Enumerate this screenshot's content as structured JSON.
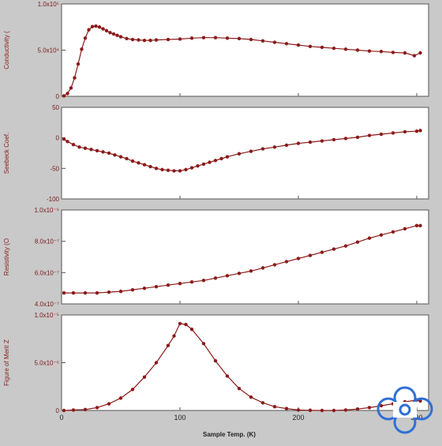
{
  "chart_data": [
    {
      "type": "line",
      "ylabel": "Conductivity (",
      "ylim": [
        0,
        100000
      ],
      "xlim": [
        0,
        310
      ],
      "yticks": [
        {
          "v": 0,
          "label": "0"
        },
        {
          "v": 50000,
          "label": "5.0x10⁴"
        },
        {
          "v": 100000,
          "label": "1.0x10⁵"
        }
      ],
      "grid": false,
      "series": [
        {
          "color": "#8b1a1a",
          "x": [
            2,
            5,
            8,
            11,
            14,
            17,
            20,
            23,
            26,
            29,
            32,
            35,
            38,
            41,
            44,
            47,
            50,
            55,
            60,
            65,
            70,
            75,
            80,
            90,
            100,
            110,
            120,
            130,
            140,
            150,
            160,
            170,
            180,
            190,
            200,
            210,
            220,
            230,
            240,
            250,
            260,
            270,
            280,
            290,
            298,
            303
          ],
          "y": [
            500,
            3000,
            9000,
            20000,
            35000,
            51000,
            63000,
            72000,
            75500,
            76000,
            75000,
            73000,
            71000,
            69000,
            67500,
            66000,
            64500,
            62500,
            61500,
            61000,
            60500,
            60500,
            61000,
            61500,
            62000,
            63000,
            63500,
            63500,
            63000,
            62500,
            61500,
            60000,
            58500,
            57000,
            55500,
            54000,
            53000,
            52000,
            51000,
            50000,
            49000,
            48500,
            47500,
            47000,
            44000,
            47000
          ]
        }
      ]
    },
    {
      "type": "line",
      "ylabel": "Seebeck Coef.",
      "ylim": [
        -100,
        50
      ],
      "xlim": [
        0,
        310
      ],
      "yticks": [
        {
          "v": -100,
          "label": "-100"
        },
        {
          "v": -50,
          "label": "-50"
        },
        {
          "v": 0,
          "label": "0"
        },
        {
          "v": 50,
          "label": "50"
        }
      ],
      "grid": false,
      "series": [
        {
          "color": "#8b1a1a",
          "x": [
            2,
            5,
            10,
            15,
            20,
            25,
            30,
            35,
            40,
            45,
            50,
            55,
            60,
            65,
            70,
            75,
            80,
            85,
            90,
            95,
            100,
            105,
            110,
            115,
            120,
            125,
            130,
            135,
            140,
            150,
            160,
            170,
            180,
            190,
            200,
            210,
            220,
            230,
            240,
            250,
            260,
            270,
            280,
            290,
            300,
            303
          ],
          "y": [
            -2,
            -6,
            -11,
            -15,
            -17,
            -19,
            -21,
            -23,
            -25,
            -28,
            -31,
            -34,
            -38,
            -41,
            -44,
            -47,
            -50,
            -52,
            -53,
            -54,
            -54,
            -52,
            -49,
            -46,
            -43,
            -40,
            -37,
            -34,
            -31,
            -26,
            -22,
            -18,
            -15,
            -12,
            -9,
            -7,
            -5,
            -3,
            -1,
            1,
            4,
            6,
            8,
            10,
            11,
            12
          ]
        }
      ]
    },
    {
      "type": "line",
      "ylabel": "Resistivity (O",
      "ylim": [
        4e-07,
        1e-06
      ],
      "xlim": [
        0,
        310
      ],
      "yticks": [
        {
          "v": 4e-07,
          "label": "4.0x10⁻⁷"
        },
        {
          "v": 6e-07,
          "label": "6.0x10⁻⁷"
        },
        {
          "v": 8e-07,
          "label": "8.0x10⁻⁷"
        },
        {
          "v": 1e-06,
          "label": "1.0x10⁻⁶"
        }
      ],
      "grid": false,
      "series": [
        {
          "color": "#8b1a1a",
          "x": [
            2,
            10,
            20,
            30,
            40,
            50,
            60,
            70,
            80,
            90,
            100,
            110,
            120,
            130,
            140,
            150,
            160,
            170,
            180,
            190,
            200,
            210,
            220,
            230,
            240,
            250,
            260,
            270,
            280,
            290,
            300,
            303
          ],
          "y": [
            4.7e-07,
            4.7e-07,
            4.7e-07,
            4.7e-07,
            4.75e-07,
            4.8e-07,
            4.9e-07,
            5e-07,
            5.1e-07,
            5.2e-07,
            5.3e-07,
            5.4e-07,
            5.5e-07,
            5.65e-07,
            5.8e-07,
            5.95e-07,
            6.1e-07,
            6.3e-07,
            6.5e-07,
            6.7e-07,
            6.9e-07,
            7.1e-07,
            7.3e-07,
            7.5e-07,
            7.7e-07,
            7.95e-07,
            8.2e-07,
            8.4e-07,
            8.6e-07,
            8.8e-07,
            9e-07,
            9e-07
          ]
        }
      ]
    },
    {
      "type": "line",
      "ylabel": "Figure of Merit Z",
      "xlabel": "Sample Temp. (K)",
      "ylim": [
        0,
        1e-05
      ],
      "xlim": [
        0,
        310
      ],
      "yticks": [
        {
          "v": 0,
          "label": "0"
        },
        {
          "v": 5e-06,
          "label": "5.0x10⁻⁶"
        },
        {
          "v": 1e-05,
          "label": "1.0x10⁻⁵"
        }
      ],
      "xticks": [
        {
          "v": 0,
          "label": "0"
        },
        {
          "v": 100,
          "label": "100"
        },
        {
          "v": 200,
          "label": "200"
        },
        {
          "v": 300,
          "label": "300"
        }
      ],
      "grid": false,
      "series": [
        {
          "color": "#8b1a1a",
          "x": [
            2,
            10,
            20,
            30,
            40,
            50,
            60,
            70,
            80,
            90,
            95,
            100,
            105,
            110,
            120,
            130,
            140,
            150,
            160,
            170,
            180,
            190,
            200,
            210,
            220,
            230,
            240,
            250,
            260,
            270,
            280,
            290,
            300,
            303
          ],
          "y": [
            0,
            5e-08,
            1e-07,
            3e-07,
            7e-07,
            1.3e-06,
            2.2e-06,
            3.5e-06,
            5e-06,
            6.8e-06,
            7.8e-06,
            9.1e-06,
            9e-06,
            8.5e-06,
            7e-06,
            5.2e-06,
            3.6e-06,
            2.3e-06,
            1.4e-06,
            8e-07,
            4e-07,
            2e-07,
            5e-08,
            2e-08,
            0,
            0,
            5e-08,
            1.5e-07,
            3e-07,
            5e-07,
            7e-07,
            9e-07,
            1.1e-06,
            1e-06
          ]
        }
      ]
    }
  ],
  "logo": {
    "name": "institution-logo-icon",
    "color": "#2f6fd6"
  }
}
